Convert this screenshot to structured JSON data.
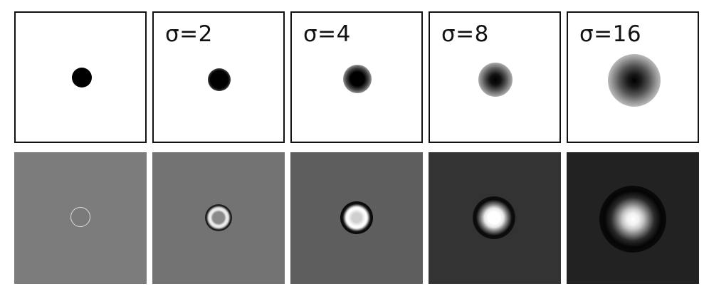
{
  "top_row": [
    {
      "label": "",
      "sigma": 0
    },
    {
      "label": "σ=2",
      "sigma": 2
    },
    {
      "label": "σ=4",
      "sigma": 4
    },
    {
      "label": "σ=8",
      "sigma": 8
    },
    {
      "label": "σ=16",
      "sigma": 16
    }
  ],
  "bottom_row": [
    {
      "sigma": 0
    },
    {
      "sigma": 2
    },
    {
      "sigma": 4
    },
    {
      "sigma": 8
    },
    {
      "sigma": 16
    }
  ],
  "colors": {
    "border": "#111111",
    "top_background": "#ffffff",
    "disc": "#000000"
  }
}
